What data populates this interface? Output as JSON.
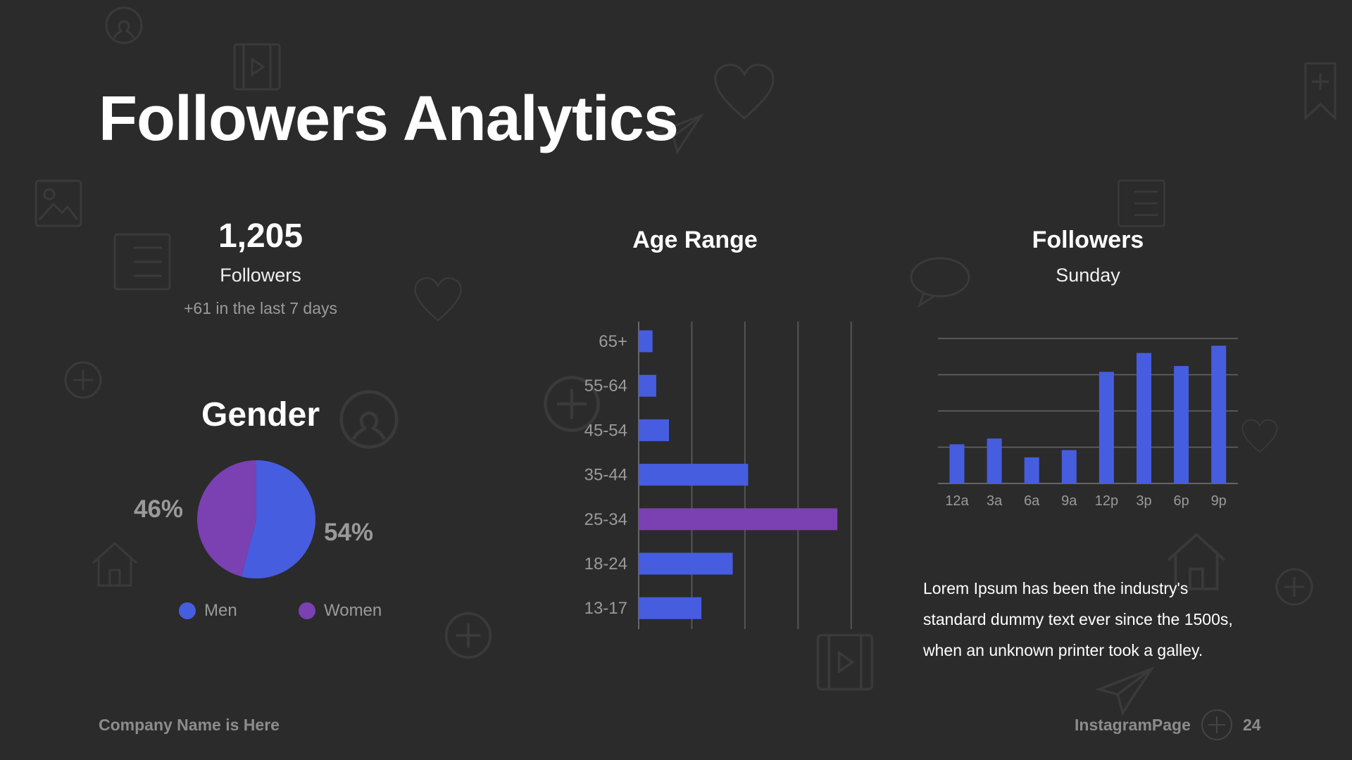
{
  "title": "Followers Analytics",
  "summary": {
    "count": "1,205",
    "label": "Followers",
    "change": "+61 in the last 7 days"
  },
  "gender": {
    "title": "Gender",
    "men": {
      "label": "Men",
      "percent_label": "54%",
      "value": 54,
      "color": "#465de0"
    },
    "women": {
      "label": "Women",
      "percent_label": "46%",
      "value": 46,
      "color": "#7b40b2"
    }
  },
  "chart_data": [
    {
      "type": "bar",
      "orientation": "horizontal",
      "title": "Age  Range",
      "categories": [
        "65+",
        "55-64",
        "45-54",
        "35-44",
        "25-34",
        "18-24",
        "13-17"
      ],
      "values": [
        2.6,
        3.3,
        5.7,
        20.6,
        37.4,
        17.7,
        11.8
      ],
      "highlight": "25-34",
      "colors": {
        "bar": "#465de0",
        "highlight": "#7b40b2"
      },
      "xlim": [
        0,
        40
      ],
      "grid": true
    },
    {
      "type": "bar",
      "title": "Followers",
      "subtitle": "Sunday",
      "categories": [
        "12a",
        "3a",
        "6a",
        "9a",
        "12p",
        "3p",
        "6p",
        "9p"
      ],
      "values": [
        27,
        31,
        18,
        23,
        77,
        90,
        81,
        95
      ],
      "ylim": [
        0,
        100
      ],
      "grid": true,
      "colors": {
        "bar": "#465de0"
      }
    }
  ],
  "description": [
    "Lorem Ipsum has been the industry's",
    "standard dummy text ever since the 1500s,",
    "when an unknown printer took a galley."
  ],
  "footer": {
    "company": "Company Name is Here",
    "brand": "InstagramPage",
    "page": "24"
  }
}
